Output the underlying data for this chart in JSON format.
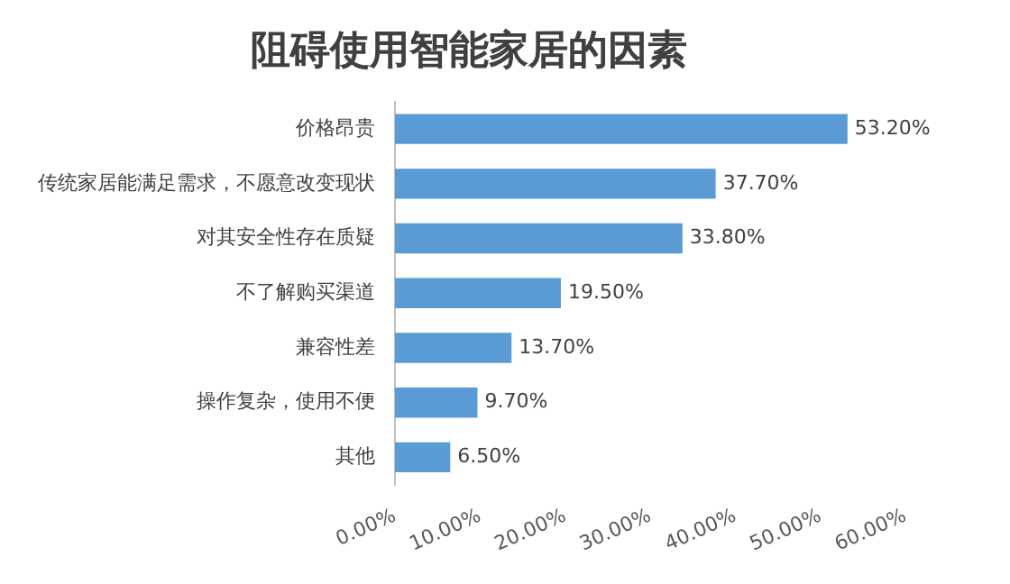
{
  "chart_data": {
    "type": "bar",
    "orientation": "horizontal",
    "title": "阻碍使用智能家居的因素",
    "categories": [
      "价格昂贵",
      "传统家居能满足需求，不愿意改变现状",
      "对其安全性存在质疑",
      "不了解购买渠道",
      "兼容性差",
      "操作复杂，使用不便",
      "其他"
    ],
    "values": [
      53.2,
      37.7,
      33.8,
      19.5,
      13.7,
      9.7,
      6.5
    ],
    "value_labels": [
      "53.20%",
      "37.70%",
      "33.80%",
      "19.50%",
      "13.70%",
      "9.70%",
      "6.50%"
    ],
    "color": "#5b9bd5",
    "xlim": [
      0,
      60
    ],
    "xticks": [
      {
        "value": 0,
        "label": "0.00%"
      },
      {
        "value": 10,
        "label": "10.00%"
      },
      {
        "value": 20,
        "label": "20.00%"
      },
      {
        "value": 30,
        "label": "30.00%"
      },
      {
        "value": 40,
        "label": "40.00%"
      },
      {
        "value": 50,
        "label": "50.00%"
      },
      {
        "value": 60,
        "label": "60.00%"
      }
    ],
    "grid": false,
    "legend": false
  }
}
